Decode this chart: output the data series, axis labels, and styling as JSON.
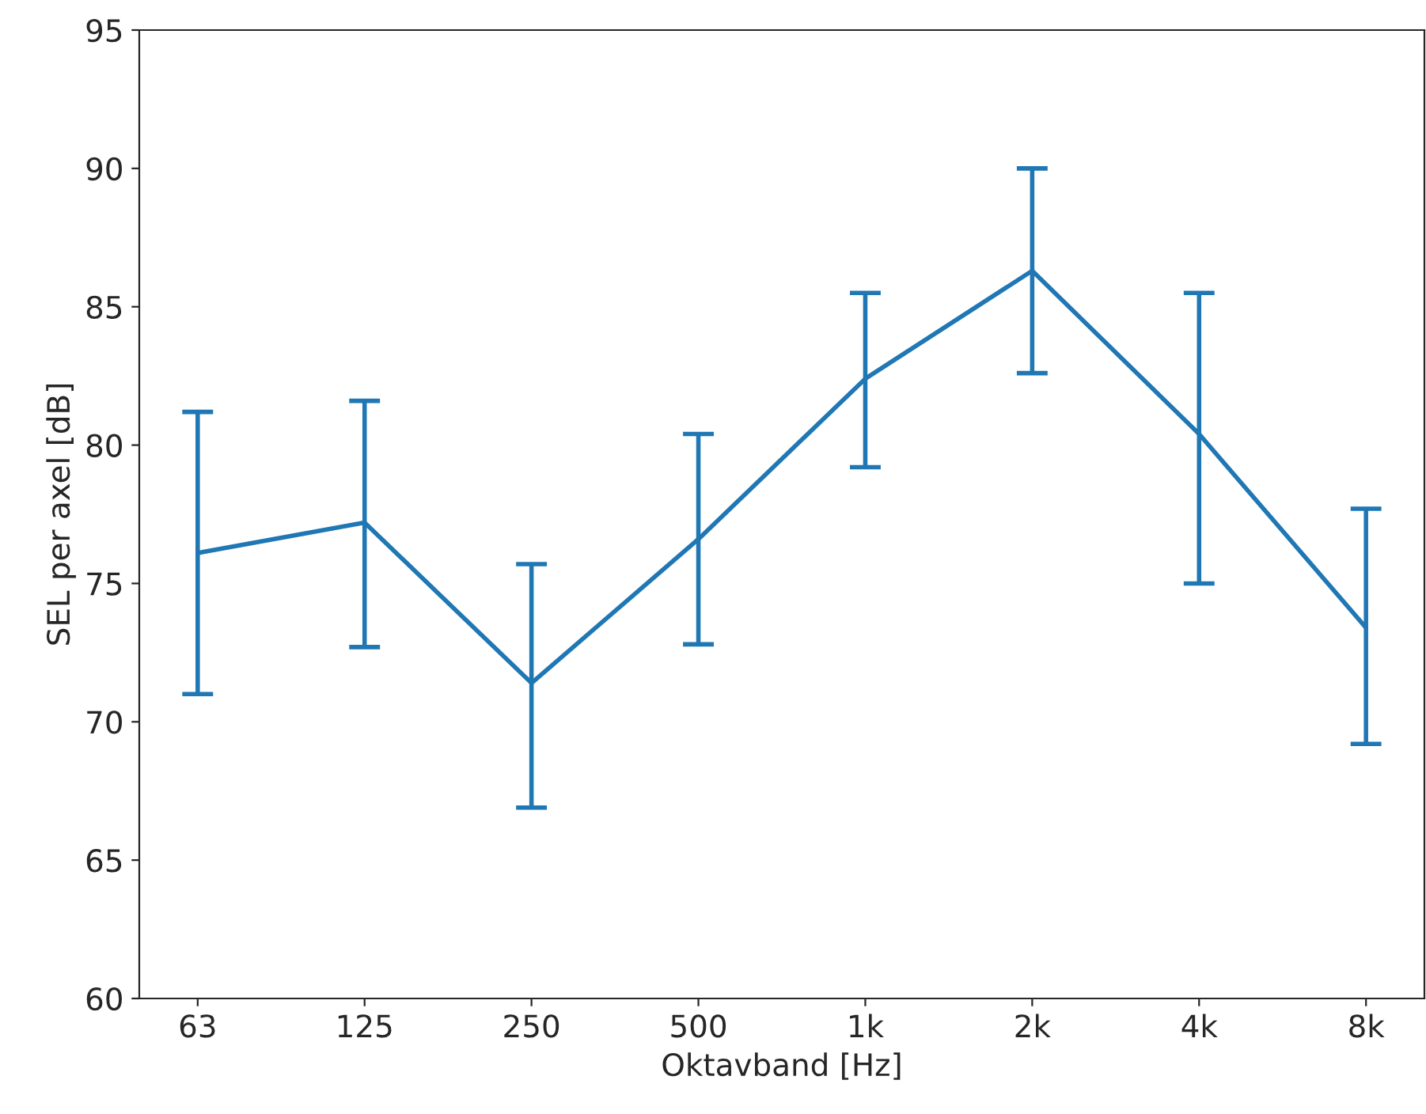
{
  "chart_data": {
    "type": "line",
    "xlabel": "Oktavband [Hz]",
    "ylabel": "SEL per axel [dB]",
    "categories": [
      "63",
      "125",
      "250",
      "500",
      "1k",
      "2k",
      "4k",
      "8k"
    ],
    "series": [
      {
        "color": "#1f77b4",
        "values": [
          76.1,
          77.2,
          71.4,
          76.6,
          82.4,
          86.3,
          80.4,
          73.4
        ],
        "errors": [
          [
            71.0,
            81.2
          ],
          [
            72.7,
            81.6
          ],
          [
            66.9,
            75.7
          ],
          [
            72.8,
            80.4
          ],
          [
            79.2,
            85.5
          ],
          [
            82.6,
            90.0
          ],
          [
            75.0,
            85.5
          ],
          [
            69.2,
            77.7
          ]
        ]
      }
    ],
    "ylim": [
      60,
      95
    ],
    "yticks": [
      60,
      65,
      70,
      75,
      80,
      85,
      90,
      95
    ],
    "grid": false,
    "legend": false,
    "marker": "none",
    "line_style": "solid"
  }
}
